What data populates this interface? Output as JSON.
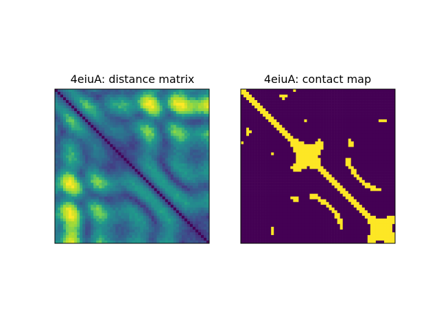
{
  "chart_data": [
    {
      "type": "heatmap",
      "title": "4eiuA: distance matrix",
      "xlabel": "",
      "ylabel": "",
      "grid": false,
      "axis_ticks": false,
      "symmetric": true,
      "colormap": "viridis",
      "description_values": "pairwise residue distance, low along the main diagonal (dark purple) and higher away from it (green/yellow)"
    },
    {
      "type": "heatmap",
      "title": "4eiuA: contact map",
      "xlabel": "",
      "ylabel": "",
      "grid": false,
      "axis_ticks": false,
      "symmetric": true,
      "colormap": "viridis",
      "binary": true
    }
  ],
  "colors": {
    "viridis": [
      "#440154",
      "#482777",
      "#3f4a8a",
      "#31678e",
      "#26838f",
      "#1f9d8a",
      "#6cce5a",
      "#b6de2b",
      "#fee825"
    ],
    "contact_on": "#fde725",
    "contact_off": "#440154"
  }
}
